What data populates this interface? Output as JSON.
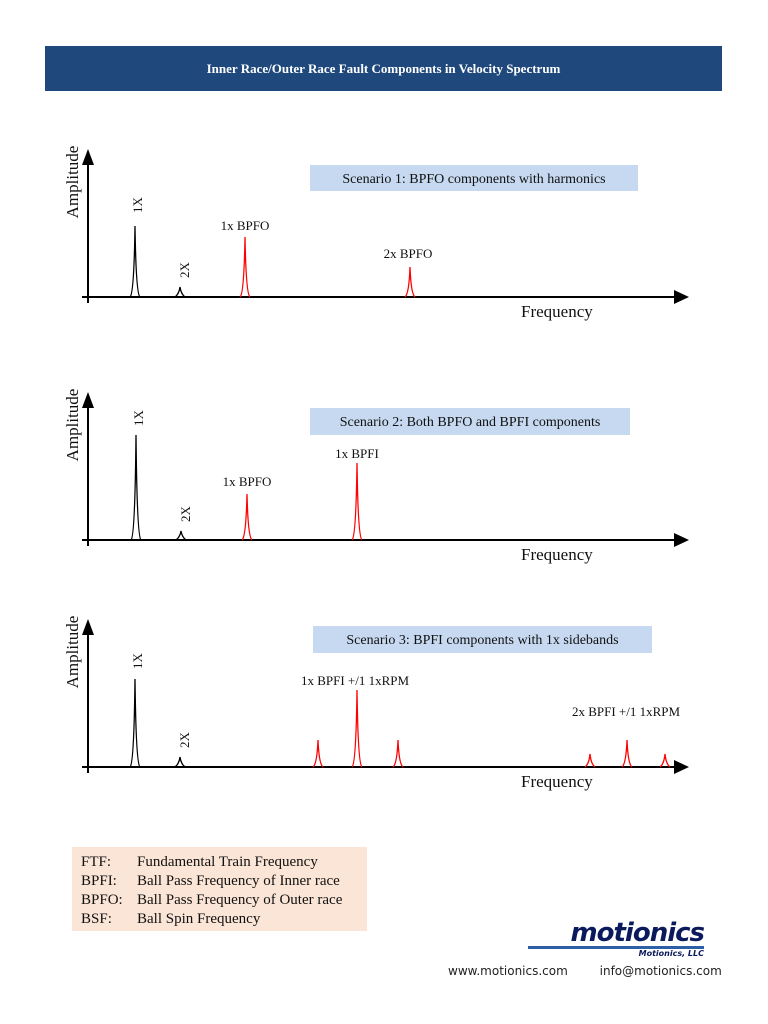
{
  "title": "Inner Race/Outer Race Fault Components in Velocity Spectrum",
  "axis_labels": {
    "y": "Amplitude",
    "x": "Frequency"
  },
  "colors": {
    "header": "#1f497d",
    "scenario_box": "#c6d9f0",
    "legend_box": "#fbe5d6",
    "fault_peak": "#ff0000",
    "shaft_peak": "#000000"
  },
  "scenarios": [
    {
      "title": "Scenario 1: BPFO components with harmonics",
      "labels": {
        "one_x": "1X",
        "two_x": "2X",
        "a": "1x BPFO",
        "b": "2x BPFO"
      }
    },
    {
      "title": "Scenario 2: Both BPFO and BPFI components",
      "labels": {
        "one_x": "1X",
        "two_x": "2X",
        "a": "1x BPFO",
        "b": "1x BPFI"
      }
    },
    {
      "title": "Scenario 3: BPFI components with 1x sidebands",
      "labels": {
        "one_x": "1X",
        "two_x": "2X",
        "a": "1x BPFI +/1 1xRPM",
        "b": "2x BPFI +/1 1xRPM"
      }
    }
  ],
  "legend": [
    {
      "abbr": "FTF:",
      "text": "Fundamental Train Frequency"
    },
    {
      "abbr": "BPFI:",
      "text": "Ball Pass Frequency of Inner race"
    },
    {
      "abbr": "BPFO:",
      "text": "Ball Pass Frequency of Outer race"
    },
    {
      "abbr": "BSF:",
      "text": "Ball Spin Frequency"
    }
  ],
  "logo": {
    "word": "motionics",
    "company": "Motionics, LLC"
  },
  "footer": {
    "website": "www.motionics.com",
    "email": "info@motionics.com"
  }
}
